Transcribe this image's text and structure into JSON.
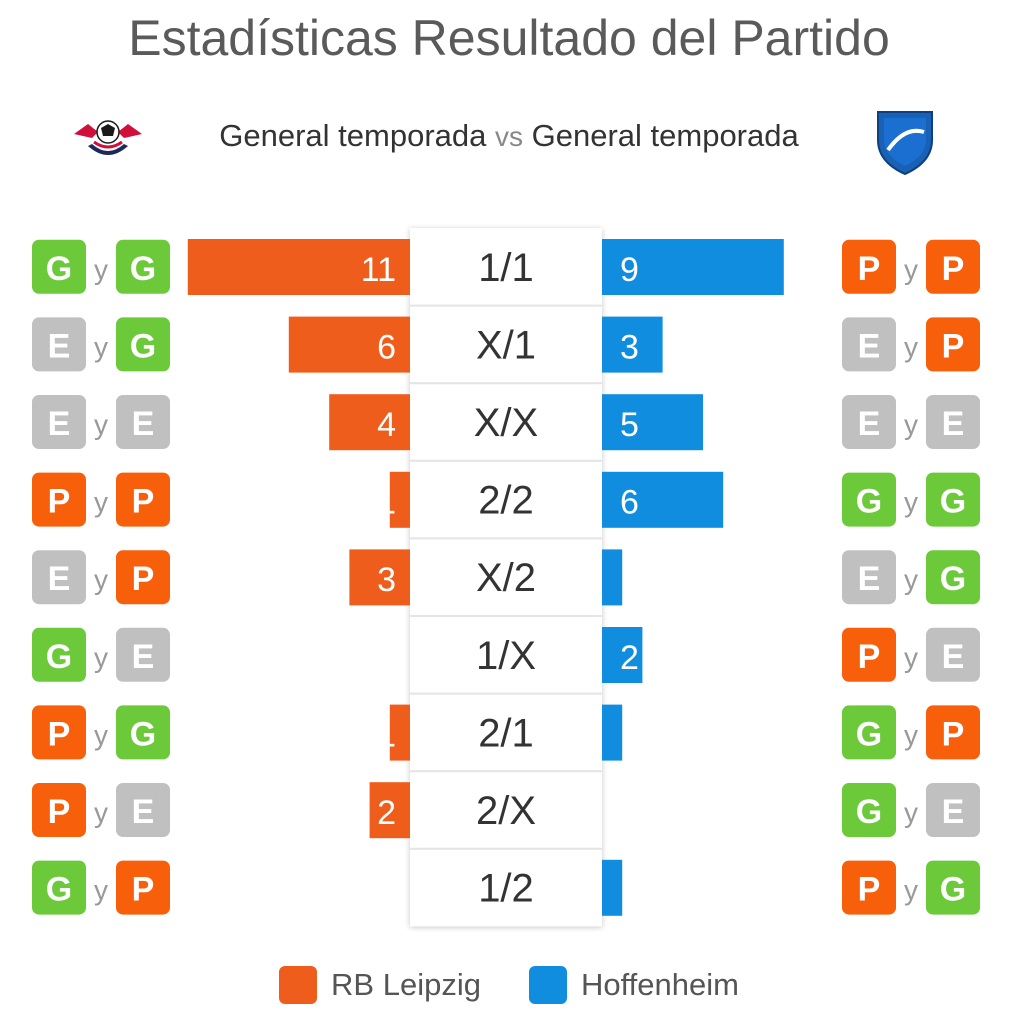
{
  "title": "Estadísticas Resultado del Partido",
  "subtitle": {
    "left": "General temporada",
    "vs": "vs",
    "right": "General temporada"
  },
  "colors": {
    "home": "#ee5d1b",
    "away": "#118de0",
    "G": "#6cc93a",
    "E": "#c0c0c0",
    "P": "#f85f0b"
  },
  "chart_data": {
    "type": "bar",
    "categories": [
      "1/1",
      "X/1",
      "X/X",
      "2/2",
      "X/2",
      "1/X",
      "2/1",
      "2/X",
      "1/2"
    ],
    "series": [
      {
        "name": "RB Leipzig",
        "values": [
          11,
          6,
          4,
          1,
          3,
          0,
          1,
          2,
          0
        ]
      },
      {
        "name": "Hoffenheim",
        "values": [
          9,
          3,
          5,
          6,
          1,
          2,
          1,
          0,
          1
        ]
      }
    ],
    "home_badges": [
      [
        "G",
        "G"
      ],
      [
        "E",
        "G"
      ],
      [
        "E",
        "E"
      ],
      [
        "P",
        "P"
      ],
      [
        "E",
        "P"
      ],
      [
        "G",
        "E"
      ],
      [
        "P",
        "G"
      ],
      [
        "P",
        "E"
      ],
      [
        "G",
        "P"
      ]
    ],
    "away_badges": [
      [
        "P",
        "P"
      ],
      [
        "E",
        "P"
      ],
      [
        "E",
        "E"
      ],
      [
        "G",
        "G"
      ],
      [
        "E",
        "G"
      ],
      [
        "P",
        "E"
      ],
      [
        "G",
        "P"
      ],
      [
        "G",
        "E"
      ],
      [
        "P",
        "G"
      ]
    ],
    "badge_joiner": "y",
    "legend": [
      "RB Leipzig",
      "Hoffenheim"
    ]
  }
}
